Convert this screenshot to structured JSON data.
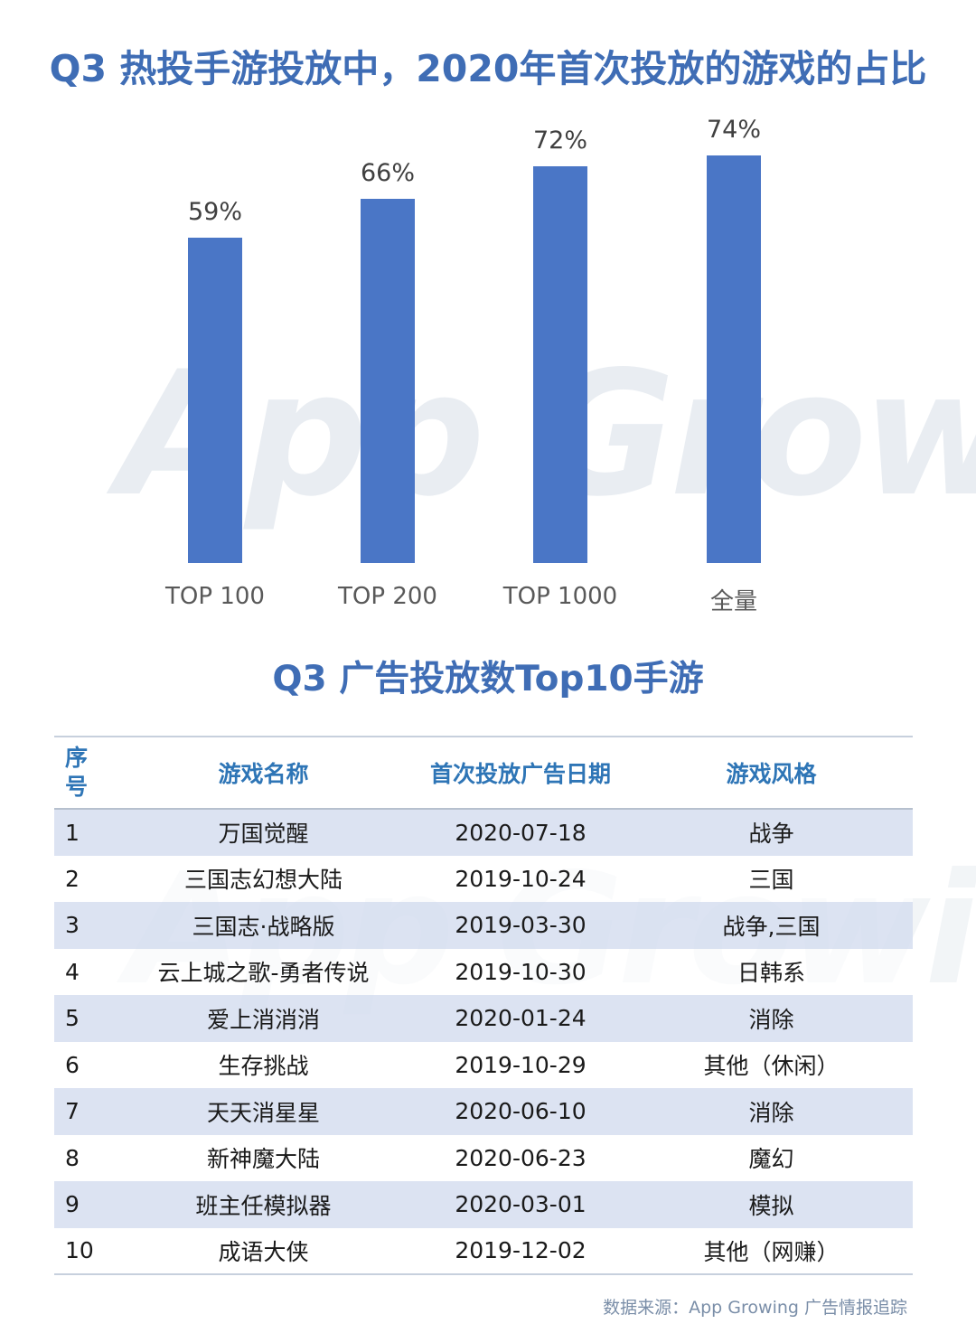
{
  "header": {
    "title": "Q3 热投手游投放中，2020年首次投放的游戏的占比"
  },
  "watermark": {
    "text": "App Growing"
  },
  "chart_data": {
    "type": "bar",
    "title": "Q3 热投手游投放中，2020年首次投放的游戏的占比",
    "categories": [
      "TOP 100",
      "TOP 200",
      "TOP 1000",
      "全量"
    ],
    "values": [
      59,
      66,
      72,
      74
    ],
    "value_labels": [
      "59%",
      "66%",
      "72%",
      "74%"
    ],
    "xlabel": "",
    "ylabel": "",
    "ylim": [
      0,
      100
    ],
    "grid": false,
    "legend": null,
    "bar_color": "#4472c4"
  },
  "table": {
    "title": "Q3  广告投放数Top10手游",
    "headers": {
      "index": "序号",
      "name": "游戏名称",
      "date": "首次投放广告日期",
      "style": "游戏风格"
    },
    "rows": [
      {
        "index": "1",
        "name": "万国觉醒",
        "date": "2020-07-18",
        "style": "战争"
      },
      {
        "index": "2",
        "name": "三国志幻想大陆",
        "date": "2019-10-24",
        "style": "三国"
      },
      {
        "index": "3",
        "name": "三国志·战略版",
        "date": "2019-03-30",
        "style": "战争,三国"
      },
      {
        "index": "4",
        "name": "云上城之歌-勇者传说",
        "date": "2019-10-30",
        "style": "日韩系"
      },
      {
        "index": "5",
        "name": "爱上消消消",
        "date": "2020-01-24",
        "style": "消除"
      },
      {
        "index": "6",
        "name": "生存挑战",
        "date": "2019-10-29",
        "style": "其他（休闲）"
      },
      {
        "index": "7",
        "name": "天天消星星",
        "date": "2020-06-10",
        "style": "消除"
      },
      {
        "index": "8",
        "name": "新神魔大陆",
        "date": "2020-06-23",
        "style": "魔幻"
      },
      {
        "index": "9",
        "name": "班主任模拟器",
        "date": "2020-03-01",
        "style": "模拟"
      },
      {
        "index": "10",
        "name": "成语大侠",
        "date": "2019-12-02",
        "style": "其他（网赚）"
      }
    ]
  },
  "footer": {
    "source": "数据来源：App Growing 广告情报追踪"
  }
}
